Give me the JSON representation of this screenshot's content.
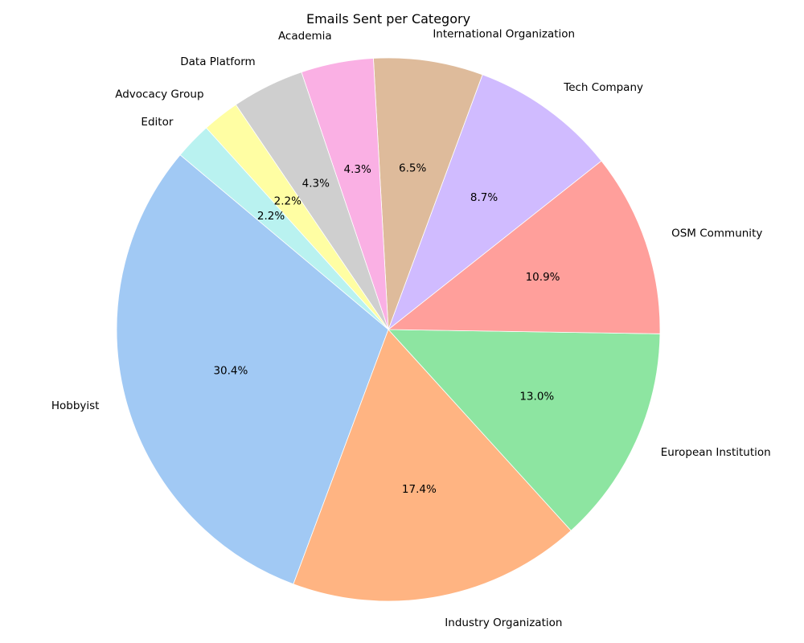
{
  "chart_data": {
    "type": "pie",
    "title": "Emails Sent per Category",
    "start_angle_deg": 140,
    "direction": "counterclockwise",
    "slices": [
      {
        "label": "Hobbyist",
        "value": 30.4,
        "pct_label": "30.4%",
        "color": "#a1c9f4"
      },
      {
        "label": "Industry Organization",
        "value": 17.4,
        "pct_label": "17.4%",
        "color": "#ffb482"
      },
      {
        "label": "European Institution",
        "value": 13.0,
        "pct_label": "13.0%",
        "color": "#8de5a1"
      },
      {
        "label": "OSM Community",
        "value": 10.9,
        "pct_label": "10.9%",
        "color": "#ff9f9b"
      },
      {
        "label": "Tech Company",
        "value": 8.7,
        "pct_label": "8.7%",
        "color": "#d0bbff"
      },
      {
        "label": "International Organization",
        "value": 6.5,
        "pct_label": "6.5%",
        "color": "#debb9b"
      },
      {
        "label": "Academia",
        "value": 4.3,
        "pct_label": "4.3%",
        "color": "#fab0e4"
      },
      {
        "label": "Data Platform",
        "value": 4.3,
        "pct_label": "4.3%",
        "color": "#cfcfcf"
      },
      {
        "label": "Advocacy Group",
        "value": 2.2,
        "pct_label": "2.2%",
        "color": "#fffea3"
      },
      {
        "label": "Editor",
        "value": 2.2,
        "pct_label": "2.2%",
        "color": "#b9f2f0"
      }
    ]
  }
}
